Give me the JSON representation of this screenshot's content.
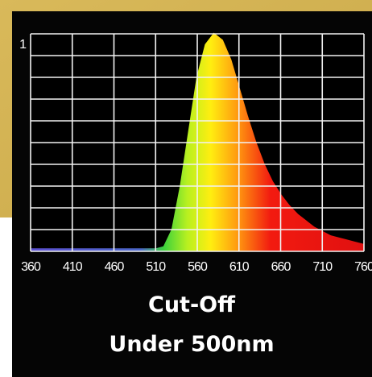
{
  "chart_data": {
    "type": "area",
    "title": "Cut-Off",
    "subtitle": "Under 500nm",
    "x": [
      360,
      370,
      380,
      390,
      400,
      410,
      420,
      430,
      440,
      450,
      460,
      470,
      480,
      490,
      500,
      510,
      520,
      530,
      540,
      550,
      560,
      570,
      580,
      590,
      600,
      610,
      620,
      630,
      640,
      650,
      660,
      670,
      680,
      690,
      700,
      710,
      720,
      730,
      740,
      750,
      760
    ],
    "values": [
      0.01,
      0.01,
      0.01,
      0.01,
      0.01,
      0.01,
      0.01,
      0.01,
      0.01,
      0.01,
      0.01,
      0.01,
      0.01,
      0.01,
      0.01,
      0.01,
      0.02,
      0.1,
      0.3,
      0.55,
      0.8,
      0.95,
      1.0,
      0.97,
      0.88,
      0.75,
      0.62,
      0.5,
      0.4,
      0.32,
      0.26,
      0.21,
      0.17,
      0.14,
      0.11,
      0.09,
      0.07,
      0.06,
      0.05,
      0.04,
      0.03
    ],
    "xlim": [
      360,
      760
    ],
    "xticks": [
      360,
      410,
      460,
      510,
      560,
      610,
      660,
      710,
      760
    ],
    "ylim": [
      0,
      1
    ],
    "yticks": [
      1
    ],
    "ygrid": [
      0,
      0.1,
      0.2,
      0.3,
      0.4,
      0.5,
      0.6,
      0.7,
      0.8,
      0.9,
      1
    ],
    "grid": true
  }
}
